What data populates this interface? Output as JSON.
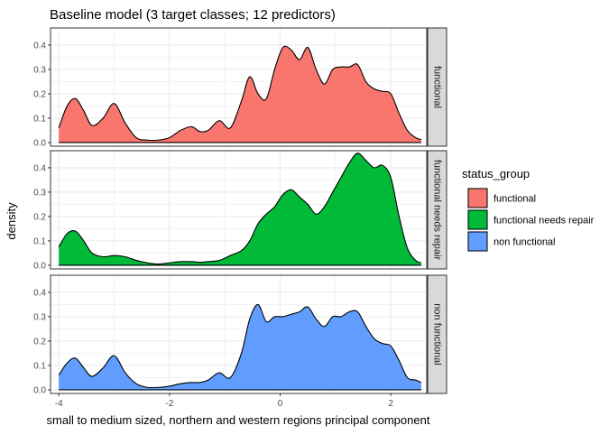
{
  "chart_data": {
    "type": "area",
    "title": "Baseline model (3 target classes; 12 predictors)",
    "xlabel": "small to medium sized, northern and western regions principal component",
    "ylabel": "density",
    "xlim": [
      -4.15,
      2.65
    ],
    "ylim": [
      -0.015,
      0.47
    ],
    "x_ticks": [
      -4,
      -2,
      0,
      2
    ],
    "y_ticks": [
      0.0,
      0.1,
      0.2,
      0.3,
      0.4
    ],
    "grid": true,
    "legend": {
      "title": "status_group",
      "placement": "right",
      "entries": [
        "functional",
        "functional needs repair",
        "non functional"
      ]
    },
    "facets": [
      {
        "label": "functional",
        "color": "#F8766D",
        "x": [
          -4.0,
          -3.85,
          -3.7,
          -3.55,
          -3.4,
          -3.2,
          -3.0,
          -2.8,
          -2.6,
          -2.4,
          -2.2,
          -2.0,
          -1.8,
          -1.6,
          -1.45,
          -1.3,
          -1.1,
          -0.9,
          -0.7,
          -0.55,
          -0.4,
          -0.25,
          -0.1,
          0.05,
          0.2,
          0.35,
          0.5,
          0.65,
          0.8,
          0.95,
          1.1,
          1.25,
          1.4,
          1.55,
          1.7,
          1.85,
          2.0,
          2.15,
          2.3,
          2.45,
          2.55
        ],
        "y": [
          0.06,
          0.15,
          0.18,
          0.13,
          0.07,
          0.1,
          0.16,
          0.08,
          0.02,
          0.01,
          0.01,
          0.02,
          0.05,
          0.065,
          0.045,
          0.05,
          0.09,
          0.06,
          0.17,
          0.27,
          0.2,
          0.18,
          0.3,
          0.39,
          0.38,
          0.34,
          0.39,
          0.3,
          0.24,
          0.3,
          0.31,
          0.31,
          0.32,
          0.25,
          0.22,
          0.21,
          0.2,
          0.12,
          0.05,
          0.02,
          0.012
        ]
      },
      {
        "label": "functional needs repair",
        "color": "#00BA38",
        "x": [
          -4.0,
          -3.85,
          -3.7,
          -3.55,
          -3.4,
          -3.2,
          -3.0,
          -2.8,
          -2.6,
          -2.4,
          -2.2,
          -2.0,
          -1.8,
          -1.6,
          -1.45,
          -1.3,
          -1.1,
          -0.9,
          -0.7,
          -0.55,
          -0.4,
          -0.25,
          -0.1,
          0.05,
          0.2,
          0.35,
          0.5,
          0.65,
          0.8,
          0.95,
          1.1,
          1.25,
          1.4,
          1.55,
          1.7,
          1.85,
          2.0,
          2.15,
          2.3,
          2.45,
          2.55
        ],
        "y": [
          0.075,
          0.13,
          0.14,
          0.1,
          0.05,
          0.035,
          0.04,
          0.035,
          0.02,
          0.01,
          0.005,
          0.01,
          0.015,
          0.015,
          0.012,
          0.015,
          0.02,
          0.04,
          0.06,
          0.1,
          0.17,
          0.21,
          0.24,
          0.29,
          0.31,
          0.28,
          0.25,
          0.21,
          0.24,
          0.3,
          0.36,
          0.42,
          0.46,
          0.43,
          0.4,
          0.41,
          0.36,
          0.2,
          0.07,
          0.02,
          0.01
        ]
      },
      {
        "label": "non functional",
        "color": "#619CFF",
        "x": [
          -4.0,
          -3.85,
          -3.7,
          -3.55,
          -3.4,
          -3.2,
          -3.0,
          -2.8,
          -2.6,
          -2.4,
          -2.2,
          -2.0,
          -1.8,
          -1.6,
          -1.45,
          -1.3,
          -1.1,
          -0.9,
          -0.7,
          -0.55,
          -0.4,
          -0.25,
          -0.1,
          0.05,
          0.2,
          0.35,
          0.5,
          0.65,
          0.8,
          0.95,
          1.1,
          1.25,
          1.4,
          1.55,
          1.7,
          1.85,
          2.0,
          2.15,
          2.3,
          2.45,
          2.55
        ],
        "y": [
          0.06,
          0.11,
          0.13,
          0.09,
          0.055,
          0.09,
          0.14,
          0.07,
          0.025,
          0.01,
          0.01,
          0.015,
          0.025,
          0.03,
          0.03,
          0.04,
          0.07,
          0.05,
          0.15,
          0.29,
          0.35,
          0.28,
          0.3,
          0.3,
          0.31,
          0.32,
          0.34,
          0.29,
          0.26,
          0.3,
          0.3,
          0.32,
          0.32,
          0.26,
          0.21,
          0.19,
          0.18,
          0.12,
          0.05,
          0.04,
          0.03
        ]
      }
    ]
  }
}
